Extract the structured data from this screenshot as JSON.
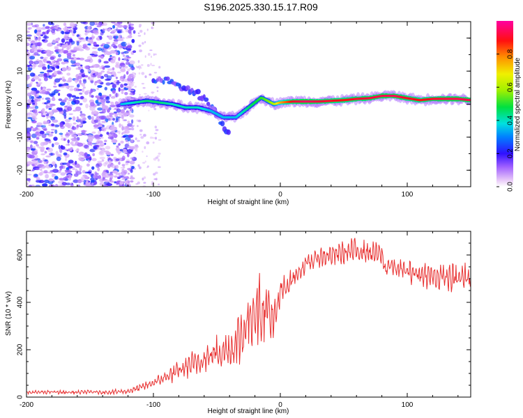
{
  "title": "S196.2025.330.15.17.R09",
  "chart_data": [
    {
      "type": "heatmap",
      "xlabel": "Height of straight line (km)",
      "ylabel": "Frequency (Hz)",
      "xlim": [
        -200,
        150
      ],
      "ylim": [
        -25,
        25
      ],
      "xticks": [
        -200,
        -100,
        0,
        100
      ],
      "xtick_labels": [
        "-200",
        "-100",
        "0",
        "100"
      ],
      "yticks": [
        -20,
        -10,
        0,
        10,
        20
      ],
      "ytick_labels": [
        "-20",
        "-10",
        "0",
        "10",
        "20"
      ],
      "colorbar": {
        "label": "Normalized spectral amplitude",
        "range": [
          0,
          1
        ],
        "ticks": [
          0.0,
          0.2,
          0.4,
          0.6,
          0.8
        ],
        "tick_labels": [
          "0.0",
          "0.2",
          "0.4",
          "0.6",
          "0.8"
        ]
      },
      "main_track": {
        "x": [
          -125,
          -115,
          -105,
          -95,
          -85,
          -75,
          -65,
          -55,
          -45,
          -35,
          -25,
          -15,
          -5,
          0,
          10,
          20,
          30,
          40,
          50,
          60,
          70,
          80,
          90,
          100,
          110,
          120,
          130,
          140,
          150
        ],
        "y": [
          0,
          0.5,
          1,
          0.5,
          0,
          -1,
          -1,
          -2,
          -4,
          -4,
          -1,
          2,
          0,
          0.5,
          0.8,
          0.8,
          0.8,
          1,
          1.2,
          1.6,
          1.8,
          2.5,
          2.5,
          1.8,
          1.2,
          1.6,
          1.6,
          1.6,
          1.2
        ],
        "amp": [
          0.35,
          0.4,
          0.45,
          0.45,
          0.4,
          0.4,
          0.4,
          0.35,
          0.35,
          0.35,
          0.45,
          0.5,
          0.6,
          0.75,
          0.9,
          0.95,
          0.92,
          0.9,
          0.88,
          0.9,
          0.92,
          0.93,
          0.94,
          0.9,
          0.88,
          0.9,
          0.92,
          0.93,
          0.93
        ]
      },
      "side_branch": {
        "x": [
          -100,
          -90,
          -80,
          -70,
          -60,
          -50,
          -40
        ],
        "y": [
          7,
          7,
          5,
          4,
          2,
          -3,
          -10
        ]
      },
      "noise_region": {
        "x_start": -200,
        "x_end": -125
      }
    },
    {
      "type": "line",
      "xlabel": "Height of straight line (km)",
      "ylabel": "SNR (10 * v/v)",
      "xlim": [
        -200,
        150
      ],
      "ylim": [
        0,
        700
      ],
      "xticks": [
        -200,
        -100,
        0,
        100
      ],
      "xtick_labels": [
        "-200",
        "-100",
        "0",
        "100"
      ],
      "yticks": [
        0,
        200,
        400,
        600
      ],
      "ytick_labels": [
        "0",
        "200",
        "400",
        "600"
      ],
      "color": "#e83030",
      "series": [
        {
          "name": "SNR",
          "x": [
            -200,
            -190,
            -180,
            -170,
            -160,
            -150,
            -140,
            -130,
            -120,
            -110,
            -100,
            -90,
            -80,
            -70,
            -60,
            -50,
            -40,
            -30,
            -25,
            -20,
            -15,
            -10,
            -5,
            0,
            5,
            10,
            20,
            30,
            40,
            50,
            60,
            70,
            80,
            83,
            85,
            90,
            100,
            110,
            120,
            130,
            140,
            150
          ],
          "y": [
            20,
            20,
            22,
            20,
            20,
            22,
            20,
            22,
            25,
            40,
            60,
            85,
            110,
            140,
            160,
            190,
            200,
            260,
            330,
            380,
            360,
            380,
            300,
            440,
            470,
            500,
            560,
            590,
            600,
            610,
            620,
            610,
            600,
            530,
            560,
            545,
            530,
            520,
            510,
            505,
            500,
            510
          ],
          "amplitude": [
            8,
            8,
            8,
            8,
            8,
            8,
            8,
            10,
            12,
            15,
            20,
            30,
            40,
            50,
            55,
            70,
            90,
            120,
            140,
            150,
            140,
            130,
            110,
            60,
            50,
            40,
            35,
            40,
            45,
            50,
            50,
            45,
            45,
            30,
            30,
            35,
            45,
            50,
            55,
            60,
            60,
            60
          ]
        }
      ]
    }
  ]
}
